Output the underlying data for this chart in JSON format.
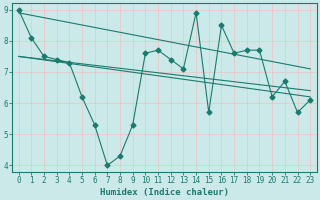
{
  "xlabel": "Humidex (Indice chaleur)",
  "bg_color": "#cce9e9",
  "grid_color": "#b8d8d8",
  "line_color": "#1a7a6e",
  "xlim": [
    -0.5,
    23.5
  ],
  "ylim": [
    3.8,
    9.2
  ],
  "yticks": [
    4,
    5,
    6,
    7,
    8,
    9
  ],
  "xticks": [
    0,
    1,
    2,
    3,
    4,
    5,
    6,
    7,
    8,
    9,
    10,
    11,
    12,
    13,
    14,
    15,
    16,
    17,
    18,
    19,
    20,
    21,
    22,
    23
  ],
  "jagged": {
    "x": [
      0,
      1,
      2,
      3,
      4,
      5,
      6,
      7,
      8,
      9,
      10,
      11,
      12,
      13,
      14,
      15,
      16,
      17,
      18,
      19,
      20,
      21,
      22,
      23
    ],
    "y": [
      9.0,
      8.1,
      7.5,
      7.4,
      7.3,
      6.2,
      5.3,
      4.0,
      4.3,
      5.3,
      7.6,
      7.7,
      7.4,
      7.1,
      8.9,
      5.7,
      8.5,
      7.6,
      7.7,
      7.7,
      6.2,
      6.7,
      5.7,
      6.1
    ]
  },
  "trends": [
    {
      "x": [
        0,
        23
      ],
      "y": [
        8.9,
        7.1
      ]
    },
    {
      "x": [
        0,
        23
      ],
      "y": [
        7.5,
        6.4
      ]
    },
    {
      "x": [
        0,
        23
      ],
      "y": [
        7.5,
        6.2
      ]
    }
  ]
}
